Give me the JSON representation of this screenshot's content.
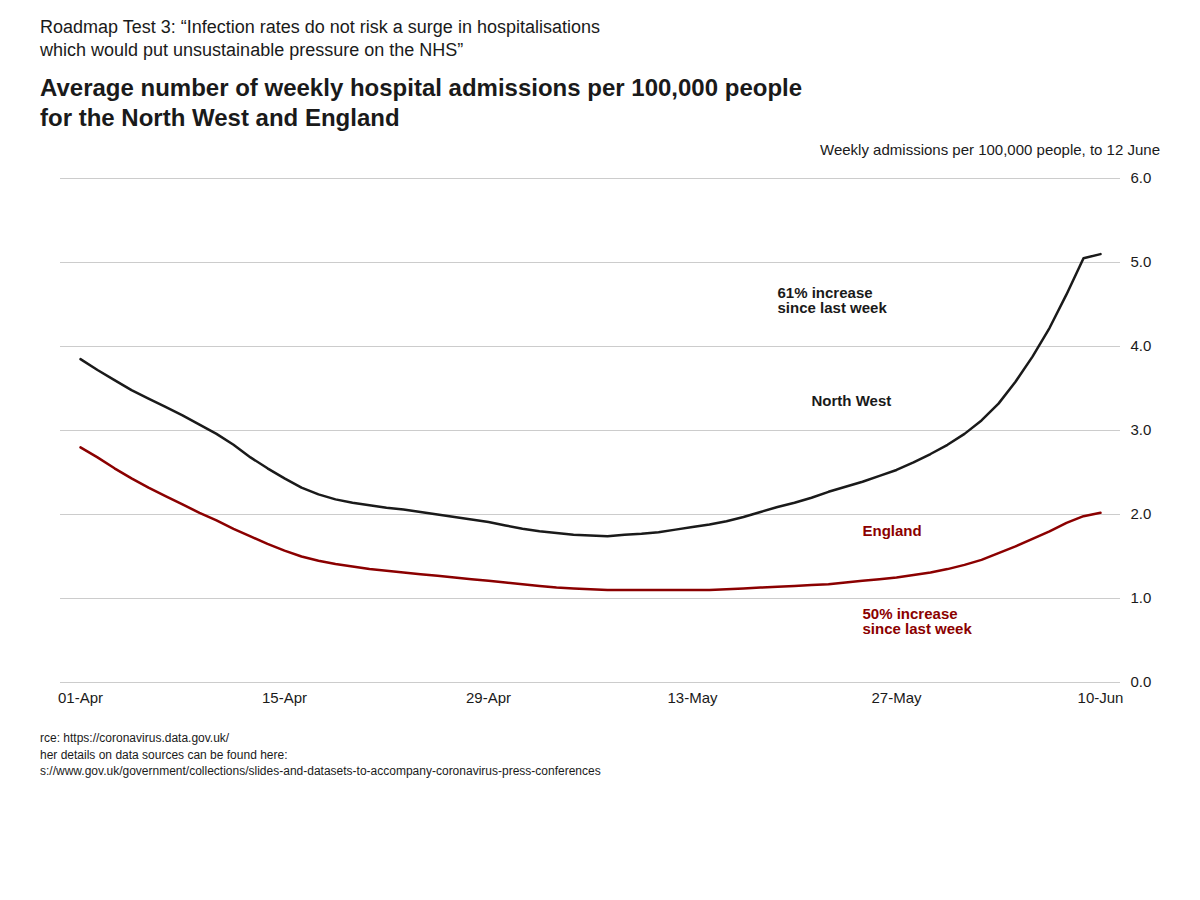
{
  "chart_data": {
    "type": "line",
    "title": "Roadmap Test 3: “Infection rates do not risk a surge in hospitalisations\nwhich would put unsustainable pressure on the NHS”",
    "subtitle": "Average number of weekly hospital admissions per 100,000 people\nfor the North West and England",
    "ylabel": "Weekly admissions per 100,000 people, to 12 June",
    "source": [
      "rce: https://coronavirus.data.gov.uk/",
      "her details on data sources can be found here:",
      "s://www.gov.uk/government/collections/slides-and-datasets-to-accompany-coronavirus-press-conferences"
    ],
    "categories": [
      "01-Apr",
      null,
      null,
      null,
      null,
      null,
      null,
      null,
      null,
      null,
      null,
      null,
      "15-Apr",
      null,
      null,
      null,
      null,
      null,
      null,
      null,
      null,
      null,
      null,
      null,
      "29-Apr",
      null,
      null,
      null,
      null,
      null,
      null,
      null,
      null,
      null,
      null,
      null,
      "13-May",
      null,
      null,
      null,
      null,
      null,
      null,
      null,
      null,
      null,
      null,
      null,
      "27-May",
      null,
      null,
      null,
      null,
      null,
      null,
      null,
      null,
      null,
      null,
      null,
      "10-Jun"
    ],
    "ylim": [
      0,
      6
    ],
    "yticks": [
      0,
      1,
      2,
      3,
      4,
      5,
      6
    ],
    "grid": true,
    "series": [
      {
        "name": "North West",
        "color": "#1a1a1a",
        "annotation": "61% increase\nsince last week",
        "values": [
          3.85,
          3.72,
          3.6,
          3.48,
          3.38,
          3.28,
          3.18,
          3.07,
          2.96,
          2.83,
          2.68,
          2.55,
          2.43,
          2.32,
          2.24,
          2.18,
          2.14,
          2.11,
          2.08,
          2.06,
          2.03,
          2.0,
          1.97,
          1.94,
          1.91,
          1.87,
          1.83,
          1.8,
          1.78,
          1.76,
          1.75,
          1.74,
          1.76,
          1.77,
          1.79,
          1.82,
          1.85,
          1.88,
          1.92,
          1.97,
          2.03,
          2.09,
          2.14,
          2.2,
          2.27,
          2.33,
          2.39,
          2.46,
          2.53,
          2.62,
          2.72,
          2.83,
          2.96,
          3.12,
          3.32,
          3.58,
          3.88,
          4.22,
          4.62,
          5.05,
          5.1
        ]
      },
      {
        "name": "England",
        "color": "#8b0000",
        "annotation": "50% increase\nsince last week",
        "values": [
          2.8,
          2.68,
          2.55,
          2.43,
          2.32,
          2.22,
          2.12,
          2.02,
          1.93,
          1.83,
          1.74,
          1.65,
          1.57,
          1.5,
          1.45,
          1.41,
          1.38,
          1.35,
          1.33,
          1.31,
          1.29,
          1.27,
          1.25,
          1.23,
          1.21,
          1.19,
          1.17,
          1.15,
          1.13,
          1.12,
          1.11,
          1.1,
          1.1,
          1.1,
          1.1,
          1.1,
          1.1,
          1.1,
          1.11,
          1.12,
          1.13,
          1.14,
          1.15,
          1.16,
          1.17,
          1.19,
          1.21,
          1.23,
          1.25,
          1.28,
          1.31,
          1.35,
          1.4,
          1.46,
          1.54,
          1.62,
          1.71,
          1.8,
          1.9,
          1.98,
          2.02
        ]
      }
    ]
  }
}
